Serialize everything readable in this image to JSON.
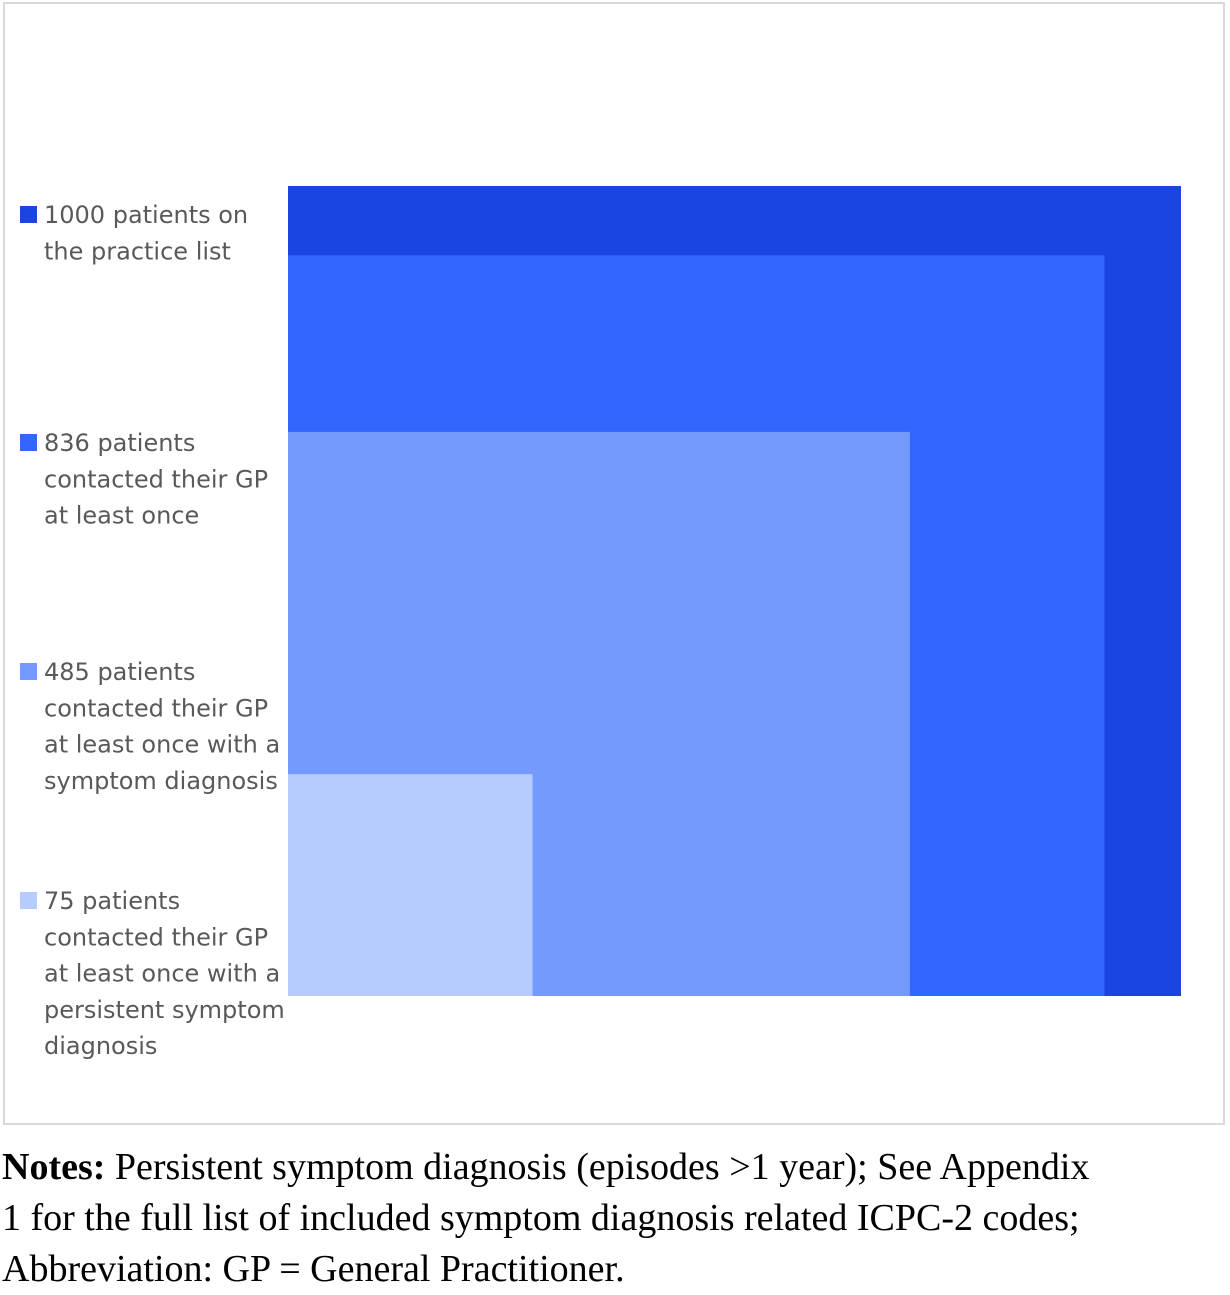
{
  "chart_data": {
    "type": "area",
    "description_type": "nested proportional squares",
    "total": 1000,
    "series": [
      {
        "name": "1000 patients on the practice list",
        "value": 1000,
        "color": "#1a45e0",
        "label_lines": [
          "1000 patients on",
          "the practice list"
        ]
      },
      {
        "name": "836 patients contacted their GP at least once",
        "value": 836,
        "color": "#3366ff",
        "label_lines": [
          "836 patients",
          "contacted their GP",
          "at least once"
        ]
      },
      {
        "name": "485 patients contacted their GP at least once with a symptom diagnosis",
        "value": 485,
        "color": "#7499ff",
        "label_lines": [
          "485 patients",
          "contacted their GP",
          "at least once with a",
          "symptom diagnosis"
        ]
      },
      {
        "name": "75 patients contacted their GP at least once with a persistent symptom diagnosis",
        "value": 75,
        "color": "#b6ccff",
        "label_lines": [
          "75 patients",
          "contacted their GP",
          "at least once with a",
          "persistent symptom",
          "diagnosis"
        ]
      }
    ],
    "legend_position": "left"
  },
  "notes": {
    "label": "Notes:",
    "line1": "Persistent symptom diagnosis (episodes >1 year); See Appendix",
    "line2": "1 for the full list of included symptom diagnosis related ICPC-2 codes;",
    "line3": "Abbreviation: GP = General Practitioner."
  }
}
